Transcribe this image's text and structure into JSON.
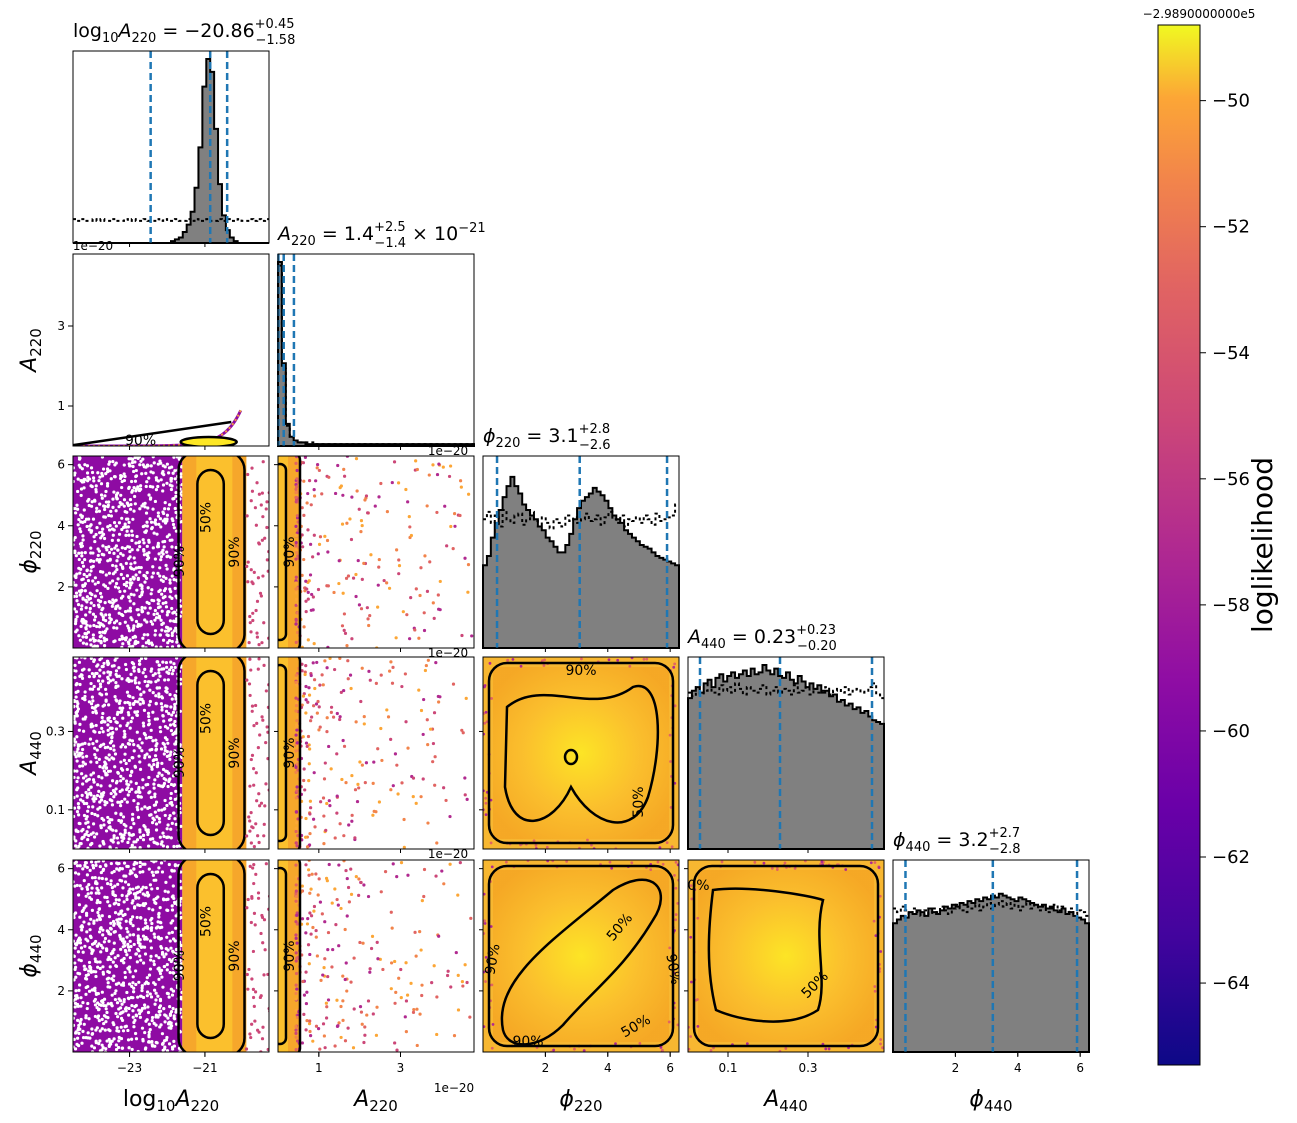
{
  "figure": {
    "colorbar": {
      "label": "loglikelihood",
      "offset_text": "−2.9890000000e5",
      "range": [
        -65.3,
        -48.8
      ],
      "ticks": [
        {
          "value": -50,
          "label": "−50"
        },
        {
          "value": -52,
          "label": "−52"
        },
        {
          "value": -54,
          "label": "−54"
        },
        {
          "value": -56,
          "label": "−56"
        },
        {
          "value": -58,
          "label": "−58"
        },
        {
          "value": -60,
          "label": "−60"
        },
        {
          "value": -62,
          "label": "−62"
        },
        {
          "value": -64,
          "label": "−64"
        }
      ],
      "colormap": "plasma"
    },
    "colors": {
      "hist_fill": "#808080",
      "quantile_line": "#1f77b4",
      "contour": "#000000"
    }
  },
  "chart_data": {
    "type": "corner",
    "parameters": [
      {
        "key": "log10A220",
        "title_main": "log",
        "title_sub": "10",
        "title_rest": "A",
        "title_rest_sub": "220",
        "title_value": " = −20.86",
        "title_sup": "+0.45",
        "title_low": "−1.58",
        "title_tail": "",
        "axis_main": "log",
        "axis_sub1": "10",
        "axis_main2": "A",
        "axis_sub2": "220",
        "range": [
          -24.5,
          -19.3
        ],
        "ticks": [
          {
            "value": -23,
            "label": "−23"
          },
          {
            "value": -21,
            "label": "−21"
          }
        ],
        "offset_text": "",
        "quantiles": [
          -22.44,
          -20.86,
          -20.41
        ],
        "hist": [
          0,
          0,
          0,
          0,
          0,
          0,
          0,
          0,
          0,
          0,
          0,
          0,
          0,
          0,
          0,
          0,
          0,
          0,
          0,
          0,
          0,
          0,
          0,
          0,
          0,
          0.01,
          0.02,
          0.03,
          0.06,
          0.1,
          0.17,
          0.3,
          0.52,
          0.85,
          1.0,
          0.93,
          0.62,
          0.32,
          0.15,
          0.07,
          0.03,
          0.01,
          0,
          0,
          0,
          0,
          0,
          0,
          0,
          0
        ],
        "prior": [
          0.13,
          0.12,
          0.13,
          0.12,
          0.12,
          0.13,
          0.12,
          0.13,
          0.12,
          0.12,
          0.13,
          0.12,
          0.12,
          0.13,
          0.12,
          0.13,
          0.12,
          0.12,
          0.13,
          0.12,
          0.12,
          0.13,
          0.12,
          0.13,
          0.12,
          0.12,
          0.13,
          0.12,
          0.12,
          0.13,
          0.12,
          0.13,
          0.12,
          0.12,
          0.13,
          0.12,
          0.12,
          0.13,
          0.12,
          0.13,
          0.12,
          0.12,
          0.13,
          0.12,
          0.12,
          0.13,
          0.12,
          0.13,
          0.12,
          0.13
        ]
      },
      {
        "key": "A220",
        "title_main": "",
        "title_sub": "",
        "title_rest": "A",
        "title_rest_sub": "220",
        "title_value": " = 1.4",
        "title_sup": "+2.5",
        "title_low": "−1.4",
        "title_tail": " × 10",
        "title_tail_sup": "−21",
        "axis_main": "",
        "axis_sub1": "",
        "axis_main2": "A",
        "axis_sub2": "220",
        "range": [
          0,
          4.8
        ],
        "ticks": [
          {
            "value": 1,
            "label": "1"
          },
          {
            "value": 3,
            "label": "3"
          }
        ],
        "offset_text": "1e−20",
        "quantiles": [
          0.01,
          0.14,
          0.39
        ],
        "hist": [
          1.0,
          0.45,
          0.12,
          0.05,
          0.03,
          0.02,
          0.02,
          0.01,
          0.01,
          0.01,
          0.01,
          0.01,
          0.01,
          0.01,
          0.01,
          0.01,
          0.01,
          0.01,
          0.01,
          0.01,
          0.01,
          0.01,
          0.01,
          0.01,
          0.01,
          0.01,
          0.01,
          0.01,
          0.01,
          0.01,
          0.01,
          0.01,
          0.01,
          0.01,
          0.01,
          0.01,
          0.01,
          0.01,
          0.01,
          0.01,
          0.01,
          0.01,
          0.01,
          0.01,
          0.01,
          0.01,
          0.01,
          0.01,
          0.01,
          0.01
        ],
        "prior": [
          0.98,
          0.42,
          0.11,
          0.05,
          0.03,
          0.02,
          0.02,
          0.02,
          0.02,
          0.01,
          0.01,
          0.01,
          0.01,
          0.01,
          0.01,
          0.01,
          0.01,
          0.01,
          0.01,
          0.01,
          0.01,
          0.01,
          0.01,
          0.01,
          0.01,
          0.01,
          0.01,
          0.01,
          0.01,
          0.01,
          0.01,
          0.01,
          0.01,
          0.01,
          0.01,
          0.01,
          0.01,
          0.01,
          0.01,
          0.01,
          0.01,
          0.01,
          0.01,
          0.01,
          0.01,
          0.01,
          0.01,
          0.01,
          0.01,
          0.01
        ]
      },
      {
        "key": "phi220",
        "title_main": "",
        "title_sub": "",
        "title_rest": "ϕ",
        "title_rest_sub": "220",
        "title_value": " = 3.1",
        "title_sup": "+2.8",
        "title_low": "−2.6",
        "title_tail": "",
        "axis_main": "",
        "axis_sub1": "",
        "axis_main2": "ϕ",
        "axis_sub2": "220",
        "range": [
          0,
          6.283
        ],
        "ticks": [
          {
            "value": 2,
            "label": "2"
          },
          {
            "value": 4,
            "label": "4"
          },
          {
            "value": 6,
            "label": "6"
          }
        ],
        "offset_text": "",
        "quantiles": [
          0.45,
          3.1,
          5.9
        ],
        "hist": [
          0.45,
          0.5,
          0.6,
          0.68,
          0.75,
          0.82,
          0.88,
          0.93,
          0.88,
          0.84,
          0.78,
          0.75,
          0.72,
          0.7,
          0.66,
          0.64,
          0.6,
          0.58,
          0.55,
          0.52,
          0.52,
          0.56,
          0.62,
          0.7,
          0.76,
          0.8,
          0.82,
          0.84,
          0.87,
          0.85,
          0.83,
          0.8,
          0.76,
          0.72,
          0.7,
          0.68,
          0.64,
          0.62,
          0.6,
          0.58,
          0.56,
          0.55,
          0.54,
          0.52,
          0.5,
          0.49,
          0.48,
          0.47,
          0.46,
          0.45
        ],
        "prior": [
          0.7,
          0.74,
          0.68,
          0.72,
          0.66,
          0.75,
          0.7,
          0.68,
          0.72,
          0.73,
          0.67,
          0.7,
          0.74,
          0.69,
          0.66,
          0.71,
          0.68,
          0.65,
          0.7,
          0.68,
          0.66,
          0.72,
          0.69,
          0.71,
          0.68,
          0.7,
          0.73,
          0.69,
          0.7,
          0.72,
          0.67,
          0.71,
          0.74,
          0.7,
          0.68,
          0.72,
          0.66,
          0.7,
          0.69,
          0.71,
          0.68,
          0.72,
          0.7,
          0.67,
          0.73,
          0.69,
          0.7,
          0.71,
          0.72,
          0.78
        ]
      },
      {
        "key": "A440",
        "title_main": "",
        "title_sub": "",
        "title_rest": "A",
        "title_rest_sub": "440",
        "title_value": " = 0.23",
        "title_sup": "+0.23",
        "title_low": "−0.20",
        "title_tail": "",
        "axis_main": "",
        "axis_sub1": "",
        "axis_main2": "A",
        "axis_sub2": "440",
        "range": [
          0,
          0.49
        ],
        "ticks": [
          {
            "value": 0.1,
            "label": "0.1"
          },
          {
            "value": 0.3,
            "label": "0.3"
          }
        ],
        "offset_text": "",
        "quantiles": [
          0.03,
          0.23,
          0.46
        ],
        "hist": [
          0.82,
          0.86,
          0.88,
          0.85,
          0.9,
          0.92,
          0.88,
          0.93,
          0.95,
          0.91,
          0.94,
          0.96,
          0.93,
          0.95,
          0.97,
          0.94,
          0.98,
          0.95,
          0.96,
          1.0,
          0.97,
          0.95,
          0.98,
          0.94,
          0.93,
          0.96,
          0.92,
          0.9,
          0.94,
          0.91,
          0.88,
          0.9,
          0.87,
          0.89,
          0.85,
          0.86,
          0.83,
          0.84,
          0.8,
          0.81,
          0.78,
          0.79,
          0.76,
          0.77,
          0.74,
          0.75,
          0.72,
          0.7,
          0.69,
          0.68
        ],
        "prior": [
          0.85,
          0.83,
          0.88,
          0.84,
          0.86,
          0.9,
          0.85,
          0.84,
          0.89,
          0.86,
          0.88,
          0.85,
          0.9,
          0.87,
          0.84,
          0.88,
          0.86,
          0.85,
          0.87,
          0.89,
          0.84,
          0.86,
          0.88,
          0.85,
          0.87,
          0.86,
          0.84,
          0.89,
          0.85,
          0.86,
          0.88,
          0.84,
          0.87,
          0.85,
          0.86,
          0.88,
          0.84,
          0.86,
          0.87,
          0.85,
          0.88,
          0.84,
          0.86,
          0.87,
          0.85,
          0.86,
          0.88,
          0.9,
          0.84,
          0.82
        ]
      },
      {
        "key": "phi440",
        "title_main": "",
        "title_sub": "",
        "title_rest": "ϕ",
        "title_rest_sub": "440",
        "title_value": " = 3.2",
        "title_sup": "+2.7",
        "title_low": "−2.8",
        "title_tail": "",
        "axis_main": "",
        "axis_sub1": "",
        "axis_main2": "ϕ",
        "axis_sub2": "440",
        "range": [
          0,
          6.283
        ],
        "ticks": [
          {
            "value": 2,
            "label": "2"
          },
          {
            "value": 4,
            "label": "4"
          },
          {
            "value": 6,
            "label": "6"
          }
        ],
        "offset_text": "",
        "quantiles": [
          0.4,
          3.2,
          5.9
        ],
        "hist": [
          0.7,
          0.72,
          0.74,
          0.73,
          0.76,
          0.75,
          0.77,
          0.76,
          0.74,
          0.78,
          0.76,
          0.75,
          0.77,
          0.79,
          0.78,
          0.8,
          0.79,
          0.81,
          0.8,
          0.82,
          0.81,
          0.83,
          0.82,
          0.84,
          0.83,
          0.85,
          0.84,
          0.86,
          0.85,
          0.84,
          0.83,
          0.82,
          0.84,
          0.83,
          0.82,
          0.81,
          0.8,
          0.79,
          0.8,
          0.78,
          0.79,
          0.77,
          0.76,
          0.78,
          0.75,
          0.76,
          0.74,
          0.73,
          0.72,
          0.7
        ],
        "prior": [
          0.78,
          0.76,
          0.79,
          0.77,
          0.75,
          0.78,
          0.76,
          0.74,
          0.77,
          0.75,
          0.78,
          0.76,
          0.79,
          0.77,
          0.75,
          0.78,
          0.8,
          0.77,
          0.76,
          0.79,
          0.78,
          0.8,
          0.77,
          0.79,
          0.81,
          0.78,
          0.8,
          0.82,
          0.79,
          0.81,
          0.78,
          0.8,
          0.77,
          0.79,
          0.81,
          0.78,
          0.8,
          0.77,
          0.79,
          0.76,
          0.78,
          0.8,
          0.77,
          0.79,
          0.76,
          0.78,
          0.75,
          0.77,
          0.76,
          0.74
        ]
      }
    ],
    "contour_labels": [
      "50%",
      "90%"
    ]
  }
}
